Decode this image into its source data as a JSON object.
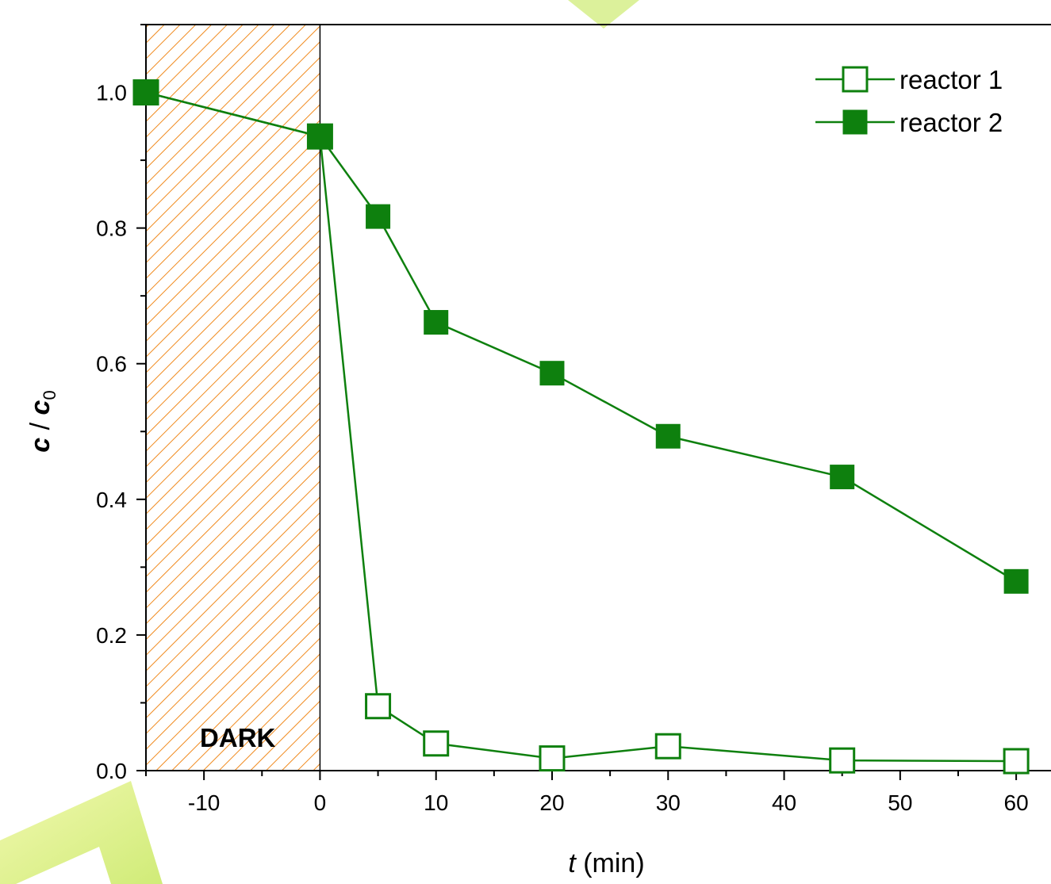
{
  "chart_data": {
    "type": "line",
    "x": [
      -15,
      0,
      5,
      10,
      20,
      30,
      45,
      60
    ],
    "series": [
      {
        "name": "reactor 1",
        "marker": "open-square",
        "color": "#0e800e",
        "values": [
          1.0,
          0.935,
          0.095,
          0.04,
          0.018,
          0.036,
          0.015,
          0.014
        ]
      },
      {
        "name": "reactor 2",
        "marker": "filled-square",
        "color": "#0e800e",
        "values": [
          1.0,
          0.935,
          0.817,
          0.661,
          0.586,
          0.493,
          0.433,
          0.279
        ]
      }
    ],
    "xlabel": {
      "italic": "t",
      "rest": " (min)"
    },
    "ylabel": {
      "c": "c",
      "sep": " / ",
      "c0": "c",
      "sub": "0"
    },
    "xlim": [
      -15,
      63
    ],
    "ylim": [
      0,
      1.1
    ],
    "xticks": [
      -10,
      0,
      10,
      20,
      30,
      40,
      50,
      60
    ],
    "yticks": [
      "0.0",
      "0.2",
      "0.4",
      "0.6",
      "0.8",
      "1.0"
    ],
    "dark_region": {
      "x_from": -15,
      "x_to": 0,
      "label": "DARK",
      "hatch_color": "#f08a1e"
    },
    "legend_position": "top-right",
    "grid": false
  }
}
